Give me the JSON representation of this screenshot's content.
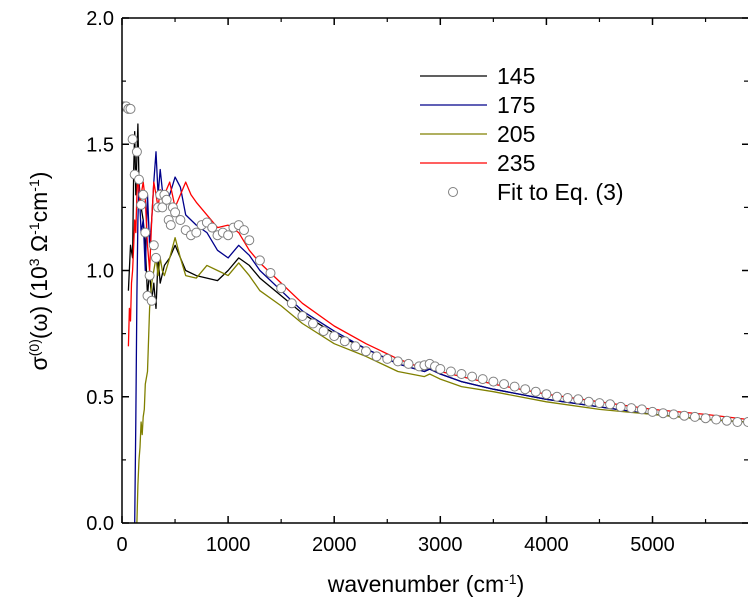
{
  "chart_data": {
    "type": "line",
    "title": "",
    "xlabel": {
      "base": "wavenumber (cm",
      "sup": "-1",
      "tail": ")"
    },
    "ylabel": {
      "parts": [
        {
          "t": "σ"
        },
        {
          "t": "(0)",
          "sup": true
        },
        {
          "t": "(ω)  (10"
        },
        {
          "t": "3",
          "sup": true
        },
        {
          "t": "  Ω"
        },
        {
          "t": "-1",
          "sup": true
        },
        {
          "t": "cm"
        },
        {
          "t": "-1",
          "sup": true
        },
        {
          "t": ")"
        }
      ]
    },
    "xlim": [
      0,
      5900
    ],
    "ylim": [
      0.0,
      2.0
    ],
    "x_ticks": [
      {
        "value": 0,
        "label": "0"
      },
      {
        "value": 1000,
        "label": "1000"
      },
      {
        "value": 2000,
        "label": "2000"
      },
      {
        "value": 3000,
        "label": "3000"
      },
      {
        "value": 4000,
        "label": "4000"
      },
      {
        "value": 5000,
        "label": "5000"
      }
    ],
    "y_ticks": [
      {
        "value": 0.0,
        "label": "0.0"
      },
      {
        "value": 0.5,
        "label": "0.5"
      },
      {
        "value": 1.0,
        "label": "1.0"
      },
      {
        "value": 1.5,
        "label": "1.5"
      },
      {
        "value": 2.0,
        "label": "2.0"
      }
    ],
    "grid": false,
    "legend_position": "top-right",
    "series": [
      {
        "name": "145",
        "color": "#000000",
        "x": [
          60,
          80,
          100,
          110,
          120,
          130,
          140,
          150,
          160,
          170,
          180,
          200,
          220,
          240,
          260,
          280,
          300,
          320,
          340,
          360,
          400,
          450,
          500,
          550,
          600,
          700,
          800,
          900,
          1000,
          1100,
          1200,
          1300,
          1500,
          1700,
          2000,
          2300,
          2600,
          2850,
          2900,
          2950,
          3000,
          3200,
          3500,
          4000,
          4500,
          5000,
          5500,
          5900
        ],
        "y": [
          0.92,
          1.1,
          1.05,
          1.4,
          1.55,
          1.3,
          1.45,
          1.58,
          1.35,
          1.3,
          1.25,
          1.2,
          1.1,
          0.9,
          1.0,
          0.88,
          0.95,
          0.85,
          1.05,
          0.95,
          1.02,
          1.05,
          1.1,
          1.05,
          1.0,
          0.98,
          0.97,
          0.96,
          1.0,
          1.05,
          1.02,
          0.97,
          0.9,
          0.83,
          0.75,
          0.69,
          0.63,
          0.6,
          0.61,
          0.6,
          0.59,
          0.56,
          0.53,
          0.49,
          0.46,
          0.43,
          0.41,
          0.4
        ]
      },
      {
        "name": "175",
        "color": "#00008b",
        "x": [
          120,
          130,
          140,
          150,
          160,
          170,
          180,
          200,
          220,
          240,
          260,
          280,
          300,
          320,
          340,
          360,
          380,
          400,
          450,
          500,
          550,
          600,
          700,
          800,
          900,
          1000,
          1100,
          1200,
          1300,
          1500,
          1700,
          2000,
          2300,
          2600,
          2850,
          2900,
          2950,
          3000,
          3200,
          3500,
          4000,
          4500,
          5000,
          5500,
          5900
        ],
        "y": [
          0.0,
          0.4,
          0.9,
          1.2,
          1.35,
          1.25,
          1.15,
          1.2,
          1.0,
          1.3,
          1.1,
          1.2,
          1.35,
          1.47,
          1.3,
          1.4,
          1.32,
          1.25,
          1.3,
          1.37,
          1.33,
          1.22,
          1.18,
          1.15,
          1.08,
          1.05,
          1.1,
          1.06,
          1.0,
          0.92,
          0.84,
          0.76,
          0.69,
          0.63,
          0.6,
          0.61,
          0.6,
          0.59,
          0.56,
          0.53,
          0.49,
          0.46,
          0.43,
          0.41,
          0.4
        ]
      },
      {
        "name": "205",
        "color": "#808000",
        "x": [
          140,
          150,
          160,
          170,
          180,
          190,
          200,
          210,
          220,
          240,
          260,
          280,
          300,
          320,
          340,
          360,
          380,
          400,
          450,
          500,
          550,
          600,
          700,
          800,
          900,
          1000,
          1100,
          1200,
          1300,
          1500,
          1700,
          2000,
          2300,
          2600,
          2850,
          2900,
          2950,
          3000,
          3200,
          3500,
          4000,
          4500,
          5000,
          5500,
          5900
        ],
        "y": [
          0.0,
          0.15,
          0.25,
          0.3,
          0.4,
          0.35,
          0.42,
          0.45,
          0.55,
          0.6,
          0.85,
          0.95,
          1.0,
          1.05,
          0.98,
          1.05,
          1.0,
          0.98,
          1.05,
          1.13,
          1.05,
          0.98,
          0.97,
          1.02,
          1.0,
          0.98,
          1.03,
          0.98,
          0.92,
          0.86,
          0.79,
          0.71,
          0.66,
          0.6,
          0.58,
          0.59,
          0.58,
          0.57,
          0.54,
          0.52,
          0.48,
          0.45,
          0.43,
          0.41,
          0.4
        ]
      },
      {
        "name": "235",
        "color": "#ff0000",
        "x": [
          60,
          70,
          80,
          90,
          100,
          110,
          120,
          130,
          140,
          150,
          160,
          170,
          180,
          200,
          220,
          240,
          260,
          280,
          300,
          320,
          340,
          360,
          380,
          400,
          450,
          500,
          550,
          600,
          650,
          700,
          800,
          900,
          1000,
          1100,
          1200,
          1300,
          1500,
          1700,
          2000,
          2300,
          2600,
          2850,
          2900,
          2950,
          3000,
          3200,
          3500,
          4000,
          4500,
          5000,
          5500,
          5900
        ],
        "y": [
          0.7,
          0.85,
          0.8,
          0.95,
          1.0,
          1.1,
          1.2,
          1.15,
          1.3,
          1.38,
          1.32,
          1.25,
          1.3,
          1.35,
          1.28,
          1.1,
          1.0,
          1.2,
          1.35,
          1.3,
          1.25,
          1.32,
          1.28,
          1.3,
          1.35,
          1.25,
          1.3,
          1.35,
          1.3,
          1.27,
          1.22,
          1.17,
          1.18,
          1.15,
          1.08,
          1.03,
          0.95,
          0.87,
          0.78,
          0.71,
          0.65,
          0.61,
          0.62,
          0.61,
          0.6,
          0.58,
          0.55,
          0.51,
          0.48,
          0.45,
          0.43,
          0.41
        ]
      }
    ],
    "fit": {
      "name": "Fit to Eq. (3)",
      "color": "#808080",
      "x": [
        20,
        40,
        60,
        80,
        100,
        120,
        140,
        160,
        180,
        200,
        220,
        240,
        260,
        280,
        300,
        320,
        340,
        360,
        380,
        400,
        420,
        440,
        460,
        480,
        500,
        550,
        600,
        650,
        700,
        750,
        800,
        850,
        900,
        950,
        1000,
        1050,
        1100,
        1150,
        1200,
        1300,
        1400,
        1500,
        1600,
        1700,
        1800,
        1900,
        2000,
        2100,
        2200,
        2300,
        2400,
        2500,
        2600,
        2700,
        2800,
        2850,
        2900,
        2950,
        3000,
        3100,
        3200,
        3300,
        3400,
        3500,
        3600,
        3700,
        3800,
        3900,
        4000,
        4100,
        4200,
        4300,
        4400,
        4500,
        4600,
        4700,
        4800,
        4900,
        5000,
        5100,
        5200,
        5300,
        5400,
        5500,
        5600,
        5700,
        5800,
        5900
      ],
      "y": [
        1.65,
        1.65,
        1.64,
        1.64,
        1.52,
        1.38,
        1.47,
        1.36,
        1.26,
        1.3,
        1.15,
        0.9,
        0.98,
        0.88,
        1.1,
        1.05,
        1.25,
        1.3,
        1.25,
        1.3,
        1.28,
        1.2,
        1.18,
        1.25,
        1.23,
        1.2,
        1.16,
        1.14,
        1.15,
        1.18,
        1.19,
        1.17,
        1.14,
        1.15,
        1.14,
        1.17,
        1.18,
        1.16,
        1.12,
        1.04,
        0.99,
        0.93,
        0.87,
        0.82,
        0.79,
        0.76,
        0.74,
        0.72,
        0.7,
        0.68,
        0.66,
        0.65,
        0.64,
        0.63,
        0.62,
        0.625,
        0.63,
        0.62,
        0.61,
        0.6,
        0.59,
        0.58,
        0.57,
        0.56,
        0.55,
        0.54,
        0.53,
        0.52,
        0.51,
        0.5,
        0.495,
        0.49,
        0.48,
        0.475,
        0.47,
        0.46,
        0.455,
        0.45,
        0.44,
        0.435,
        0.43,
        0.425,
        0.42,
        0.415,
        0.41,
        0.405,
        0.4,
        0.4
      ]
    }
  }
}
